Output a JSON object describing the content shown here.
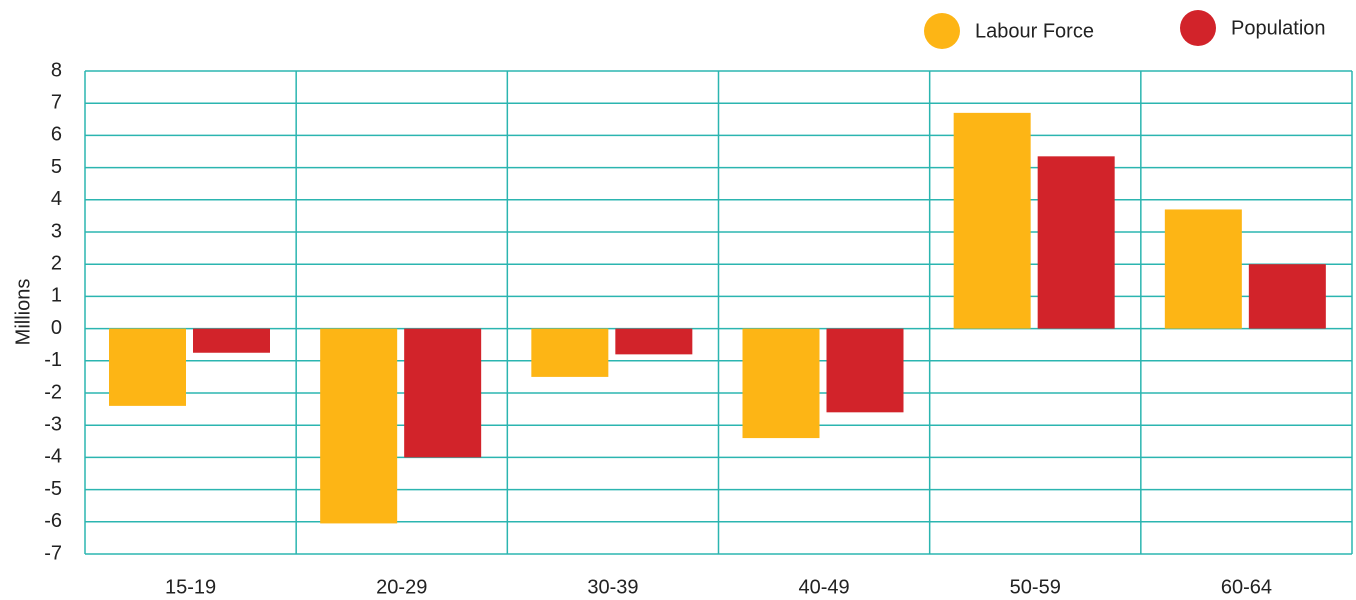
{
  "chart_data": {
    "type": "bar",
    "y_label": "Millions",
    "categories": [
      "15-19",
      "20-29",
      "30-39",
      "40-49",
      "50-59",
      "60-64"
    ],
    "series": [
      {
        "name": "Labour Force",
        "color": "#fdb515",
        "values": [
          -2.4,
          -6.05,
          -1.5,
          -3.4,
          6.7,
          3.7
        ]
      },
      {
        "name": "Population",
        "color": "#d2232a",
        "values": [
          -0.75,
          -4.0,
          -0.8,
          -2.6,
          5.35,
          2.0
        ]
      }
    ],
    "ylim": [
      -7,
      8
    ],
    "yticks": [
      -7,
      -6,
      -5,
      -4,
      -3,
      -2,
      -1,
      0,
      1,
      2,
      3,
      4,
      5,
      6,
      7,
      8
    ],
    "grid": true,
    "grid_color": "#2bb5b0",
    "legend": "top-right"
  }
}
